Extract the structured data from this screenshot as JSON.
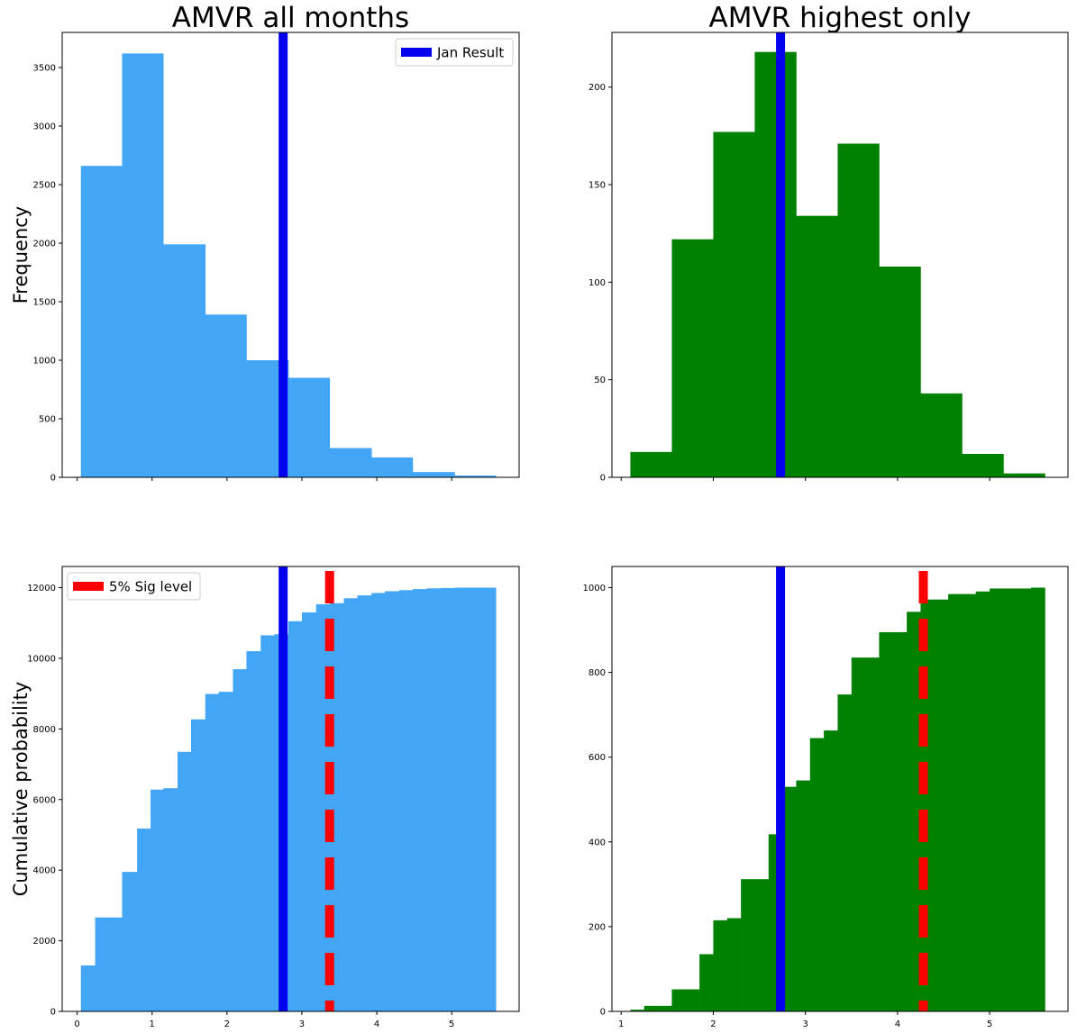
{
  "chart_data": [
    {
      "id": "top-left",
      "type": "bar",
      "title": "AMVR all months",
      "xlabel": "",
      "ylabel": "Frequency",
      "xlim": [
        -0.2,
        5.9
      ],
      "ylim": [
        0,
        3800
      ],
      "yticks": [
        0,
        500,
        1000,
        1500,
        2000,
        2500,
        3000,
        3500
      ],
      "xticks": [
        0,
        1,
        2,
        3,
        4,
        5
      ],
      "show_xtick_labels": false,
      "color": "#42a5f5",
      "bins": [
        {
          "x0": 0.05,
          "x1": 0.6,
          "value": 2660
        },
        {
          "x0": 0.6,
          "x1": 1.15,
          "value": 3620
        },
        {
          "x0": 1.15,
          "x1": 1.71,
          "value": 1990
        },
        {
          "x0": 1.71,
          "x1": 2.26,
          "value": 1390
        },
        {
          "x0": 2.26,
          "x1": 2.82,
          "value": 1000
        },
        {
          "x0": 2.82,
          "x1": 3.37,
          "value": 850
        },
        {
          "x0": 3.37,
          "x1": 3.93,
          "value": 250
        },
        {
          "x0": 3.93,
          "x1": 4.48,
          "value": 170
        },
        {
          "x0": 4.48,
          "x1": 5.04,
          "value": 45
        },
        {
          "x0": 5.04,
          "x1": 5.59,
          "value": 15
        }
      ],
      "vlines": [
        {
          "x": 2.75,
          "color": "#0000ee",
          "style": "solid"
        }
      ],
      "legend": {
        "position": "top-right",
        "entries": [
          {
            "label": "Jan Result",
            "color": "#0000ee"
          }
        ]
      }
    },
    {
      "id": "top-right",
      "type": "bar",
      "title": "AMVR highest only",
      "xlabel": "",
      "ylabel": "",
      "xlim": [
        0.9,
        5.85
      ],
      "ylim": [
        0,
        228
      ],
      "yticks": [
        0,
        50,
        100,
        150,
        200
      ],
      "xticks": [
        1,
        2,
        3,
        4,
        5
      ],
      "show_xtick_labels": false,
      "color": "#008000",
      "bins": [
        {
          "x0": 1.1,
          "x1": 1.55,
          "value": 13
        },
        {
          "x0": 1.55,
          "x1": 2.0,
          "value": 122
        },
        {
          "x0": 2.0,
          "x1": 2.45,
          "value": 177
        },
        {
          "x0": 2.45,
          "x1": 2.9,
          "value": 218
        },
        {
          "x0": 2.9,
          "x1": 3.35,
          "value": 134
        },
        {
          "x0": 3.35,
          "x1": 3.8,
          "value": 171
        },
        {
          "x0": 3.8,
          "x1": 4.25,
          "value": 108
        },
        {
          "x0": 4.25,
          "x1": 4.7,
          "value": 43
        },
        {
          "x0": 4.7,
          "x1": 5.15,
          "value": 12
        },
        {
          "x0": 5.15,
          "x1": 5.6,
          "value": 2
        }
      ],
      "vlines": [
        {
          "x": 2.73,
          "color": "#0000ee",
          "style": "solid"
        }
      ]
    },
    {
      "id": "bottom-left",
      "type": "bar",
      "title": "",
      "xlabel": "",
      "ylabel": "Cumulative probability",
      "xlim": [
        -0.2,
        5.9
      ],
      "ylim": [
        0,
        12600
      ],
      "yticks": [
        0,
        2000,
        4000,
        6000,
        8000,
        10000,
        12000
      ],
      "xticks": [
        0,
        1,
        2,
        3,
        4,
        5
      ],
      "show_xtick_labels": true,
      "color": "#42a5f5",
      "bins": [
        {
          "x0": 0.05,
          "x1": 0.24,
          "value": 1300
        },
        {
          "x0": 0.24,
          "x1": 0.6,
          "value": 2660
        },
        {
          "x0": 0.6,
          "x1": 0.8,
          "value": 3950
        },
        {
          "x0": 0.8,
          "x1": 0.98,
          "value": 5180
        },
        {
          "x0": 0.98,
          "x1": 1.15,
          "value": 6280
        },
        {
          "x0": 1.15,
          "x1": 1.34,
          "value": 6320
        },
        {
          "x0": 1.34,
          "x1": 1.52,
          "value": 7350
        },
        {
          "x0": 1.52,
          "x1": 1.71,
          "value": 8270
        },
        {
          "x0": 1.71,
          "x1": 1.89,
          "value": 8990
        },
        {
          "x0": 1.89,
          "x1": 2.08,
          "value": 9050
        },
        {
          "x0": 2.08,
          "x1": 2.26,
          "value": 9690
        },
        {
          "x0": 2.26,
          "x1": 2.45,
          "value": 10200
        },
        {
          "x0": 2.45,
          "x1": 2.63,
          "value": 10650
        },
        {
          "x0": 2.63,
          "x1": 2.82,
          "value": 10680
        },
        {
          "x0": 2.82,
          "x1": 3.0,
          "value": 11050
        },
        {
          "x0": 3.0,
          "x1": 3.19,
          "value": 11300
        },
        {
          "x0": 3.19,
          "x1": 3.37,
          "value": 11530
        },
        {
          "x0": 3.37,
          "x1": 3.56,
          "value": 11560
        },
        {
          "x0": 3.56,
          "x1": 3.74,
          "value": 11700
        },
        {
          "x0": 3.74,
          "x1": 3.93,
          "value": 11780
        },
        {
          "x0": 3.93,
          "x1": 4.11,
          "value": 11850
        },
        {
          "x0": 4.11,
          "x1": 4.3,
          "value": 11900
        },
        {
          "x0": 4.3,
          "x1": 4.48,
          "value": 11930
        },
        {
          "x0": 4.48,
          "x1": 4.67,
          "value": 11960
        },
        {
          "x0": 4.67,
          "x1": 4.85,
          "value": 11980
        },
        {
          "x0": 4.85,
          "x1": 5.04,
          "value": 11990
        },
        {
          "x0": 5.04,
          "x1": 5.59,
          "value": 12000
        }
      ],
      "vlines": [
        {
          "x": 2.75,
          "color": "#0000ee",
          "style": "solid"
        },
        {
          "x": 3.37,
          "color": "#ff0000",
          "style": "dashed"
        }
      ],
      "legend": {
        "position": "top-left",
        "entries": [
          {
            "label": "5% Sig level",
            "color": "#ff0000"
          }
        ]
      }
    },
    {
      "id": "bottom-right",
      "type": "bar",
      "title": "",
      "xlabel": "",
      "ylabel": "",
      "xlim": [
        0.9,
        5.85
      ],
      "ylim": [
        0,
        1050
      ],
      "yticks": [
        0,
        200,
        400,
        600,
        800,
        1000
      ],
      "xticks": [
        1,
        2,
        3,
        4,
        5
      ],
      "show_xtick_labels": true,
      "color": "#008000",
      "bins": [
        {
          "x0": 1.1,
          "x1": 1.25,
          "value": 4
        },
        {
          "x0": 1.25,
          "x1": 1.55,
          "value": 13
        },
        {
          "x0": 1.55,
          "x1": 1.85,
          "value": 52
        },
        {
          "x0": 1.85,
          "x1": 2.0,
          "value": 135
        },
        {
          "x0": 2.0,
          "x1": 2.15,
          "value": 215
        },
        {
          "x0": 2.15,
          "x1": 2.3,
          "value": 220
        },
        {
          "x0": 2.3,
          "x1": 2.6,
          "value": 312
        },
        {
          "x0": 2.6,
          "x1": 2.75,
          "value": 418
        },
        {
          "x0": 2.75,
          "x1": 2.9,
          "value": 530
        },
        {
          "x0": 2.9,
          "x1": 3.05,
          "value": 545
        },
        {
          "x0": 3.05,
          "x1": 3.2,
          "value": 645
        },
        {
          "x0": 3.2,
          "x1": 3.35,
          "value": 663
        },
        {
          "x0": 3.35,
          "x1": 3.5,
          "value": 748
        },
        {
          "x0": 3.5,
          "x1": 3.8,
          "value": 835
        },
        {
          "x0": 3.8,
          "x1": 4.1,
          "value": 895
        },
        {
          "x0": 4.1,
          "x1": 4.25,
          "value": 943
        },
        {
          "x0": 4.25,
          "x1": 4.55,
          "value": 972
        },
        {
          "x0": 4.55,
          "x1": 4.85,
          "value": 985
        },
        {
          "x0": 4.85,
          "x1": 5.0,
          "value": 991
        },
        {
          "x0": 5.0,
          "x1": 5.45,
          "value": 998
        },
        {
          "x0": 5.45,
          "x1": 5.6,
          "value": 1000
        }
      ],
      "vlines": [
        {
          "x": 2.73,
          "color": "#0000ee",
          "style": "solid"
        },
        {
          "x": 4.28,
          "color": "#ff0000",
          "style": "dashed"
        }
      ]
    }
  ]
}
